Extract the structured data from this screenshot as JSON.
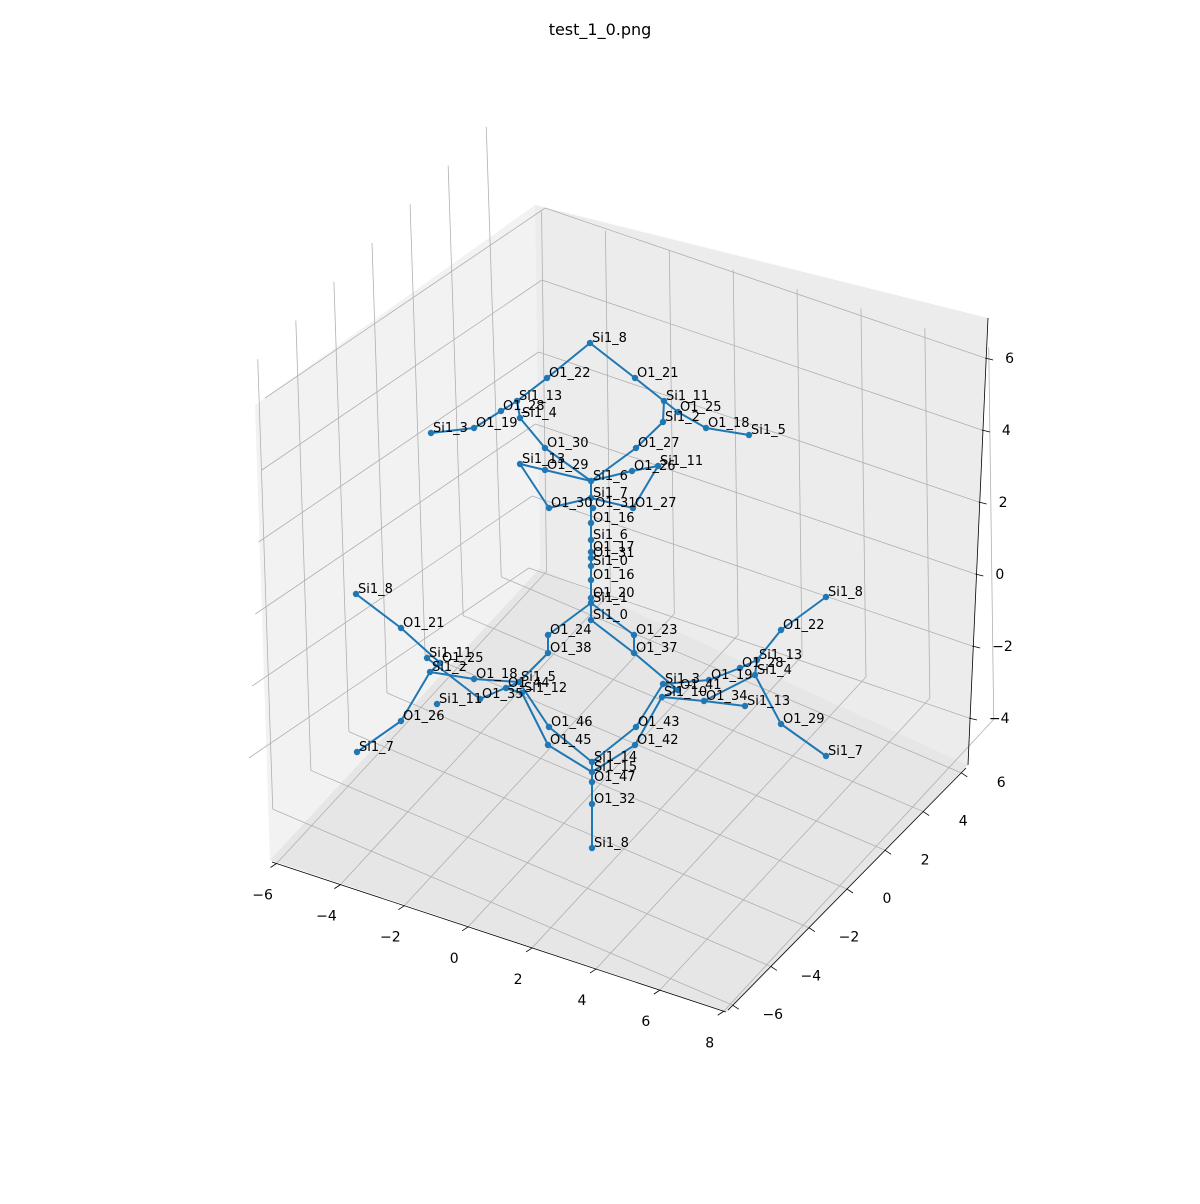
{
  "title": "test_1_0.png",
  "colors": {
    "series": "#1f77b4",
    "grid": "#b0b0b0",
    "pane": "#f2f2f2"
  },
  "chart_data": {
    "type": "scatter",
    "projection": "3d",
    "grid": true,
    "axes": {
      "x": {
        "ticks": [
          "−6",
          "−4",
          "−2",
          "0",
          "2",
          "4",
          "6",
          "8"
        ],
        "range": [
          -6,
          8
        ]
      },
      "y": {
        "ticks": [
          "−6",
          "−4",
          "−2",
          "0",
          "2",
          "4",
          "6"
        ],
        "range": [
          -6,
          6
        ]
      },
      "z": {
        "ticks": [
          "−4",
          "−2",
          "0",
          "2",
          "4",
          "6"
        ],
        "range": [
          -4,
          6
        ]
      }
    },
    "atoms": [
      {
        "id": "a1",
        "label": "Si1_8"
      },
      {
        "id": "a2",
        "label": "O1_22"
      },
      {
        "id": "a3",
        "label": "O1_21"
      },
      {
        "id": "a4",
        "label": "Si1_13"
      },
      {
        "id": "a5",
        "label": "Si1_11"
      },
      {
        "id": "a6",
        "label": "O1_25"
      },
      {
        "id": "a7",
        "label": "O1_28"
      },
      {
        "id": "a8",
        "label": "Si1_4"
      },
      {
        "id": "a9",
        "label": "Si1_2"
      },
      {
        "id": "a10",
        "label": "O1_18"
      },
      {
        "id": "a11",
        "label": "Si1_5"
      },
      {
        "id": "a12",
        "label": "Si1_3"
      },
      {
        "id": "a13",
        "label": "O1_19"
      },
      {
        "id": "a14",
        "label": "O1_30"
      },
      {
        "id": "a15",
        "label": "O1_27"
      },
      {
        "id": "a16",
        "label": "Si1_13"
      },
      {
        "id": "a17",
        "label": "O1_29"
      },
      {
        "id": "a18",
        "label": "O1_26"
      },
      {
        "id": "a19",
        "label": "Si1_11"
      },
      {
        "id": "a20",
        "label": "Si1_6"
      },
      {
        "id": "a21",
        "label": "Si1_7"
      },
      {
        "id": "a22",
        "label": "O1_30"
      },
      {
        "id": "a23",
        "label": "O1_31"
      },
      {
        "id": "a24",
        "label": "O1_27"
      },
      {
        "id": "a25",
        "label": "O1_16"
      },
      {
        "id": "a26",
        "label": "Si1_6"
      },
      {
        "id": "a27",
        "label": "O1_17"
      },
      {
        "id": "a28",
        "label": "O1_31"
      },
      {
        "id": "a29",
        "label": "Si1_0"
      },
      {
        "id": "a30",
        "label": "O1_16"
      },
      {
        "id": "a31",
        "label": "O1_20"
      },
      {
        "id": "a32",
        "label": "Si1_1"
      },
      {
        "id": "a33",
        "label": "Si1_0"
      },
      {
        "id": "a34",
        "label": "O1_24"
      },
      {
        "id": "a35",
        "label": "O1_23"
      },
      {
        "id": "a36",
        "label": "O1_38"
      },
      {
        "id": "a37",
        "label": "O1_37"
      },
      {
        "id": "a38",
        "label": "Si1_8"
      },
      {
        "id": "a39",
        "label": "O1_21"
      },
      {
        "id": "a40",
        "label": "Si1_11"
      },
      {
        "id": "a41",
        "label": "O1_25"
      },
      {
        "id": "a42",
        "label": "Si1_2"
      },
      {
        "id": "a43",
        "label": "O1_18"
      },
      {
        "id": "a44",
        "label": "Si1_5"
      },
      {
        "id": "a45",
        "label": "O1_44"
      },
      {
        "id": "a46",
        "label": "Si1_12"
      },
      {
        "id": "a47",
        "label": "Si1_11"
      },
      {
        "id": "a48",
        "label": "O1_35"
      },
      {
        "id": "a49",
        "label": "O1_26"
      },
      {
        "id": "a50",
        "label": "Si1_7"
      },
      {
        "id": "a51",
        "label": "Si1_8"
      },
      {
        "id": "a52",
        "label": "O1_22"
      },
      {
        "id": "a53",
        "label": "Si1_13"
      },
      {
        "id": "a54",
        "label": "O1_28"
      },
      {
        "id": "a55",
        "label": "Si1_4"
      },
      {
        "id": "a56",
        "label": "O1_19"
      },
      {
        "id": "a57",
        "label": "Si1_3"
      },
      {
        "id": "a58",
        "label": "O1_41"
      },
      {
        "id": "a59",
        "label": "Si1_10"
      },
      {
        "id": "a60",
        "label": "O1_34"
      },
      {
        "id": "a61",
        "label": "Si1_13"
      },
      {
        "id": "a62",
        "label": "O1_29"
      },
      {
        "id": "a63",
        "label": "Si1_7"
      },
      {
        "id": "a64",
        "label": "O1_46"
      },
      {
        "id": "a65",
        "label": "O1_43"
      },
      {
        "id": "a66",
        "label": "O1_45"
      },
      {
        "id": "a67",
        "label": "O1_42"
      },
      {
        "id": "a68",
        "label": "Si1_14"
      },
      {
        "id": "a69",
        "label": "Si1_15"
      },
      {
        "id": "a70",
        "label": "O1_47"
      },
      {
        "id": "a71",
        "label": "O1_32"
      },
      {
        "id": "a72",
        "label": "Si1_8"
      }
    ],
    "bonds": [
      [
        "a1",
        "a2"
      ],
      [
        "a1",
        "a3"
      ],
      [
        "a2",
        "a4"
      ],
      [
        "a4",
        "a7"
      ],
      [
        "a7",
        "a13"
      ],
      [
        "a13",
        "a12"
      ],
      [
        "a4",
        "a8"
      ],
      [
        "a8",
        "a14"
      ],
      [
        "a14",
        "a20"
      ],
      [
        "a3",
        "a5"
      ],
      [
        "a5",
        "a6"
      ],
      [
        "a6",
        "a10"
      ],
      [
        "a10",
        "a11"
      ],
      [
        "a5",
        "a9"
      ],
      [
        "a9",
        "a15"
      ],
      [
        "a15",
        "a20"
      ],
      [
        "a16",
        "a22"
      ],
      [
        "a16",
        "a17"
      ],
      [
        "a17",
        "a20"
      ],
      [
        "a19",
        "a18"
      ],
      [
        "a18",
        "a20"
      ],
      [
        "a19",
        "a24"
      ],
      [
        "a24",
        "a21"
      ],
      [
        "a22",
        "a21"
      ],
      [
        "a20",
        "a21"
      ],
      [
        "a21",
        "a25"
      ],
      [
        "a25",
        "a26"
      ],
      [
        "a26",
        "a27"
      ],
      [
        "a27",
        "a29"
      ],
      [
        "a29",
        "a30"
      ],
      [
        "a30",
        "a31"
      ],
      [
        "a31",
        "a32"
      ],
      [
        "a32",
        "a33"
      ],
      [
        "a32",
        "a34"
      ],
      [
        "a32",
        "a35"
      ],
      [
        "a34",
        "a36"
      ],
      [
        "a35",
        "a37"
      ],
      [
        "a33",
        "a37"
      ],
      [
        "a36",
        "a44"
      ],
      [
        "a37",
        "a58"
      ],
      [
        "a38",
        "a39"
      ],
      [
        "a39",
        "a41"
      ],
      [
        "a41",
        "a42"
      ],
      [
        "a42",
        "a49"
      ],
      [
        "a49",
        "a50"
      ],
      [
        "a42",
        "a43"
      ],
      [
        "a43",
        "a44"
      ],
      [
        "a40",
        "a48"
      ],
      [
        "a48",
        "a44"
      ],
      [
        "a44",
        "a45"
      ],
      [
        "a45",
        "a46"
      ],
      [
        "a51",
        "a52"
      ],
      [
        "a52",
        "a53"
      ],
      [
        "a53",
        "a54"
      ],
      [
        "a54",
        "a56"
      ],
      [
        "a56",
        "a57"
      ],
      [
        "a53",
        "a55"
      ],
      [
        "a55",
        "a60"
      ],
      [
        "a60",
        "a59"
      ],
      [
        "a55",
        "a62"
      ],
      [
        "a62",
        "a63"
      ],
      [
        "a61",
        "a60"
      ],
      [
        "a57",
        "a58"
      ],
      [
        "a58",
        "a59"
      ],
      [
        "a44",
        "a64"
      ],
      [
        "a46",
        "a66"
      ],
      [
        "a57",
        "a65"
      ],
      [
        "a59",
        "a67"
      ],
      [
        "a64",
        "a68"
      ],
      [
        "a66",
        "a69"
      ],
      [
        "a65",
        "a68"
      ],
      [
        "a67",
        "a69"
      ],
      [
        "a68",
        "a70"
      ],
      [
        "a69",
        "a70"
      ],
      [
        "a70",
        "a71"
      ],
      [
        "a71",
        "a72"
      ]
    ]
  }
}
